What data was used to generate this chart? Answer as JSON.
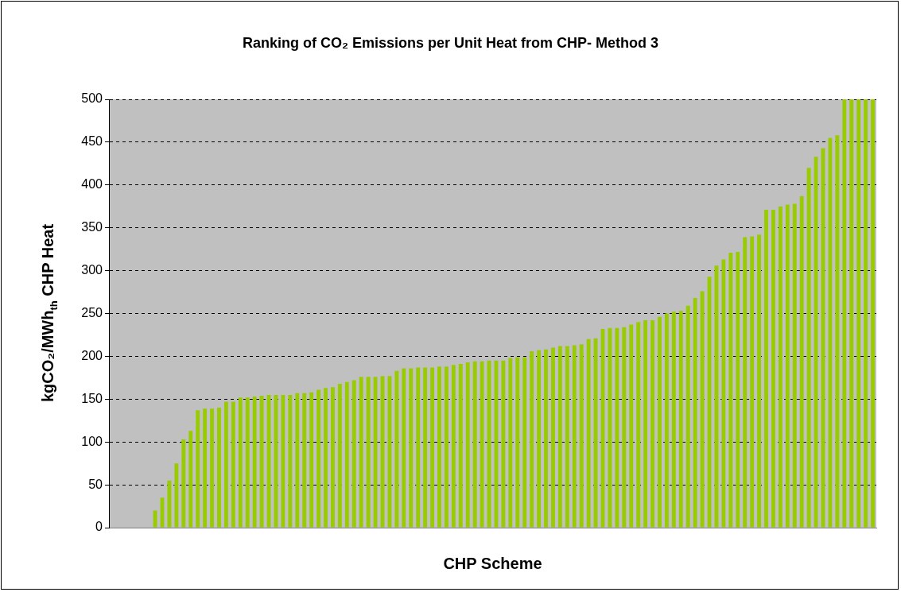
{
  "chart_data": {
    "type": "bar",
    "title": "Ranking of CO₂ Emissions per Unit Heat from CHP- Method 3",
    "xlabel": "CHP Scheme",
    "ylabel": "kgCO₂/MWh$_{th}$ CHP Heat",
    "categories": [
      null,
      null,
      null,
      null,
      null,
      null,
      null,
      null,
      null,
      null,
      null,
      null,
      null,
      null,
      null,
      null,
      null,
      null,
      null,
      null,
      null,
      null,
      null,
      null,
      null,
      null,
      null,
      null,
      null,
      null,
      null,
      null,
      null,
      null,
      null,
      null,
      null,
      null,
      null,
      null,
      null,
      null,
      null,
      null,
      null,
      null,
      null,
      null,
      null,
      null,
      null,
      null,
      null,
      null,
      null,
      null,
      null,
      null,
      null,
      null,
      null,
      null,
      null,
      null,
      null,
      null,
      null,
      null,
      null,
      null,
      null,
      null,
      null,
      null,
      null,
      null,
      null,
      null,
      null,
      null,
      null,
      null,
      null,
      null,
      null,
      null,
      null,
      null,
      null,
      null,
      null,
      null,
      null,
      null,
      null,
      null,
      null,
      null,
      null,
      null,
      null,
      null,
      null,
      null,
      null,
      null,
      null,
      null
    ],
    "values": [
      0,
      0,
      0,
      0,
      0,
      0,
      20,
      35,
      55,
      75,
      103,
      113,
      137,
      139,
      139,
      140,
      147,
      147,
      152,
      152,
      153,
      154,
      155,
      155,
      155,
      155,
      157,
      157,
      158,
      161,
      163,
      164,
      168,
      170,
      172,
      176,
      176,
      176,
      177,
      177,
      183,
      186,
      186,
      187,
      187,
      187,
      188,
      188,
      190,
      191,
      193,
      194,
      194,
      195,
      195,
      195,
      198,
      199,
      199,
      206,
      207,
      208,
      210,
      212,
      212,
      213,
      214,
      220,
      221,
      232,
      233,
      233,
      234,
      237,
      240,
      242,
      242,
      246,
      250,
      252,
      253,
      259,
      268,
      276,
      293,
      306,
      313,
      321,
      322,
      339,
      340,
      342,
      371,
      371,
      375,
      377,
      378,
      387,
      420,
      433,
      443,
      455,
      458,
      500,
      500,
      500,
      500,
      500
    ],
    "color": "#99cc00",
    "ylim": [
      0,
      500
    ],
    "yticks": [
      0,
      50,
      100,
      150,
      200,
      250,
      300,
      350,
      400,
      450,
      500
    ],
    "grid": "y"
  }
}
